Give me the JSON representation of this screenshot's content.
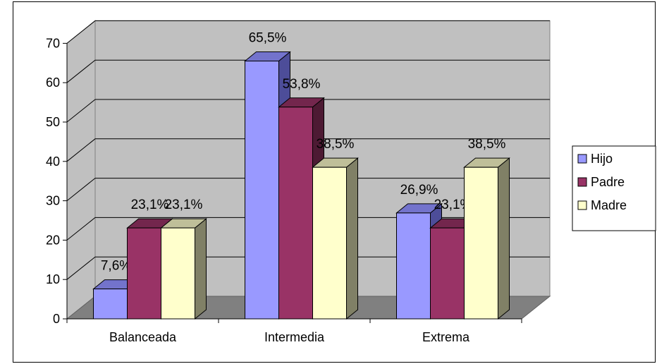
{
  "chart_data": {
    "type": "bar",
    "categories": [
      "Balanceada",
      "Intermedia",
      "Extrema"
    ],
    "series": [
      {
        "name": "Hijo",
        "values": [
          7.6,
          65.5,
          26.9
        ],
        "labels": [
          "7,6%",
          "65,5%",
          "26,9%"
        ],
        "color": "#9999ff",
        "side": "#4d4d99",
        "top": "#7373cc"
      },
      {
        "name": "Padre",
        "values": [
          23.1,
          53.8,
          23.1
        ],
        "labels": [
          "23,1%",
          "53,8%",
          "23,1%"
        ],
        "color": "#993366",
        "side": "#4d1a33",
        "top": "#73264d"
      },
      {
        "name": "Madre",
        "values": [
          23.1,
          38.5,
          38.5
        ],
        "labels": [
          "23,1%",
          "38,5%",
          "38,5%"
        ],
        "color": "#ffffcc",
        "side": "#808066",
        "top": "#bfbf99"
      }
    ],
    "ylim": [
      0,
      70
    ],
    "yticks": [
      "0",
      "10",
      "20",
      "30",
      "40",
      "50",
      "60",
      "70"
    ],
    "grid": true,
    "legend_position": "right",
    "wall_color": "#c0c0c0",
    "floor_color": "#808080"
  }
}
